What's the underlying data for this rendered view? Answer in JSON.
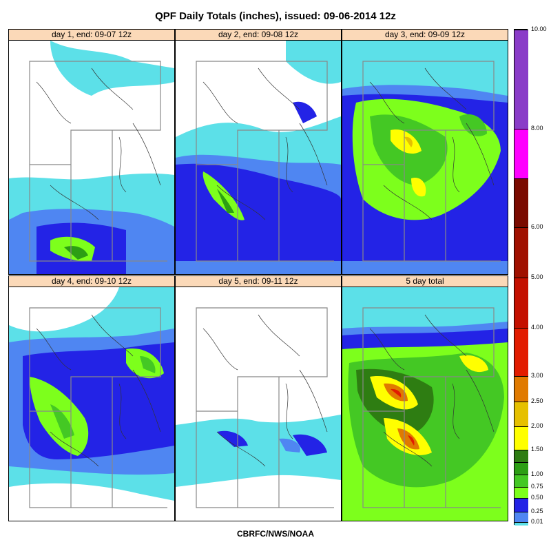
{
  "title": "QPF Daily Totals (inches),  issued: 09-06-2014 12z",
  "footer": "CBRFC/NWS/NOAA",
  "panels": [
    {
      "label": "day 1, end: 09-07 12z",
      "levels": [
        "cyan",
        "blue",
        "green"
      ]
    },
    {
      "label": "day 2, end: 09-08 12z",
      "levels": [
        "cyan",
        "blue",
        "green"
      ]
    },
    {
      "label": "day 3, end: 09-09 12z",
      "levels": [
        "cyan",
        "blue",
        "green",
        "yellow"
      ]
    },
    {
      "label": "day 4, end: 09-10 12z",
      "levels": [
        "cyan",
        "blue",
        "green"
      ]
    },
    {
      "label": "day 5, end: 09-11 12z",
      "levels": [
        "cyan",
        "blue"
      ]
    },
    {
      "label": "5 day total",
      "levels": [
        "cyan",
        "blue",
        "green",
        "yellow",
        "red"
      ]
    }
  ],
  "legend": {
    "ticks": [
      "0.01",
      "0.25",
      "0.50",
      "0.75",
      "1.00",
      "1.50",
      "2.00",
      "2.50",
      "3.00",
      "4.00",
      "5.00",
      "6.00",
      "8.00",
      "10.00"
    ],
    "colors": [
      "#5ce0e8",
      "#4f86f2",
      "#2323e6",
      "#7dff1c",
      "#44c824",
      "#2c9e14",
      "#2e7d12",
      "#ffff00",
      "#e6c000",
      "#e07a00",
      "#e21c00",
      "#c41000",
      "#a01000",
      "#7a0a00",
      "#ff00ff",
      "#8a3cc8"
    ]
  }
}
